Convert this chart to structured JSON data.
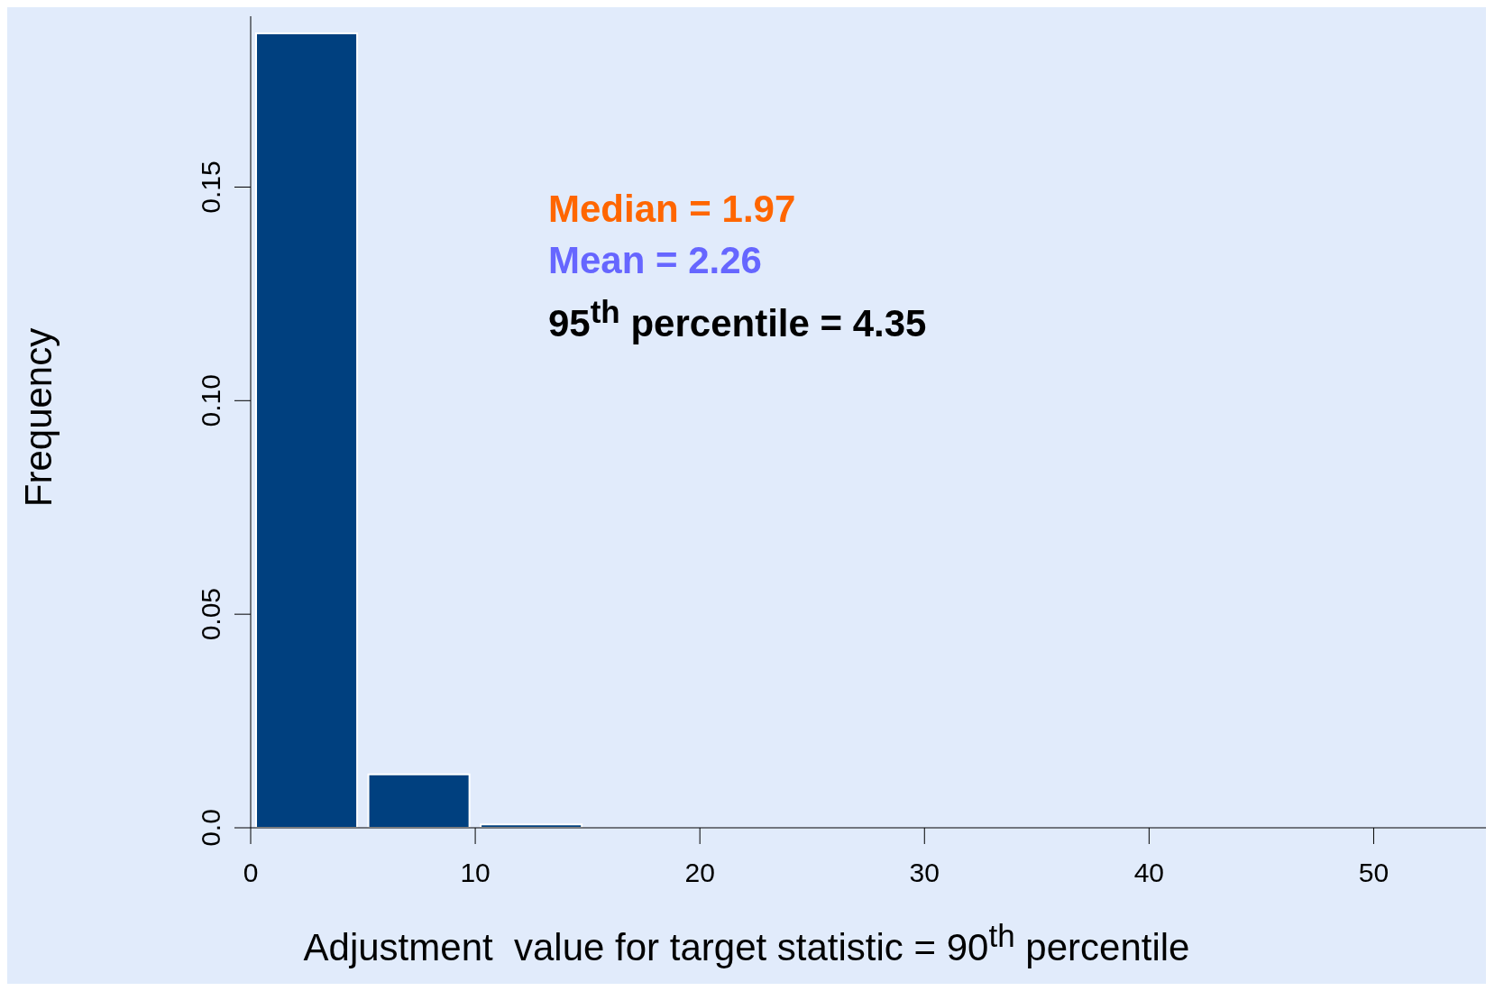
{
  "chart_data": {
    "type": "histogram",
    "xlabel": "Adjustment  value for target statistic = 90$^{th}$ percentile",
    "ylabel": "Frequency",
    "annotations": [
      "Median = 1.97",
      "Mean = 2.26",
      "95$^{th}$ percentile = 4.35"
    ],
    "bins": [
      0,
      5,
      10,
      15,
      20,
      25,
      30,
      35,
      40,
      45,
      50,
      55
    ],
    "values": [
      0.186,
      0.0125,
      0.0008,
      0,
      0,
      0,
      0,
      0,
      0,
      0,
      0
    ],
    "color": "#00407f",
    "xlim": [
      0,
      55
    ],
    "xticks": [
      0,
      10,
      20,
      30,
      40,
      50
    ],
    "ylim": [
      0,
      0.19
    ],
    "yticks": [
      {
        "value": 0,
        "label": "0.0"
      },
      {
        "value": 0.05,
        "label": "0.05"
      },
      {
        "value": 0.1,
        "label": "0.10"
      },
      {
        "value": 0.15,
        "label": "0.15"
      }
    ],
    "grid": false
  }
}
